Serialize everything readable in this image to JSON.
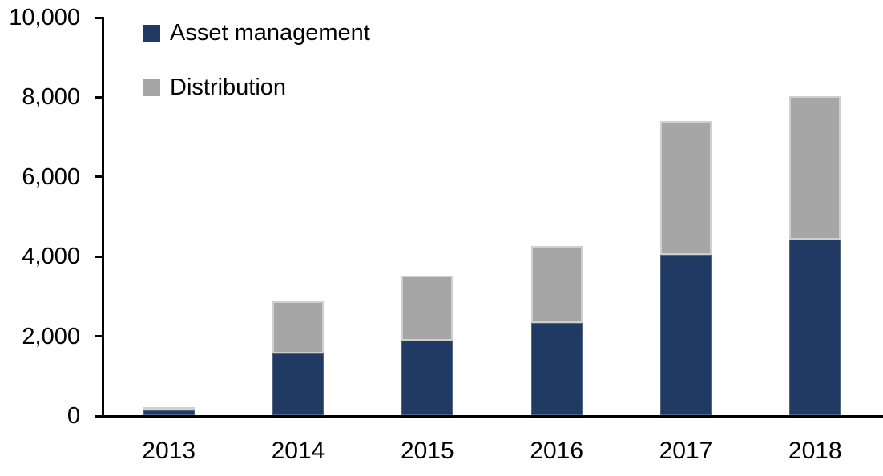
{
  "chart_data": {
    "type": "bar",
    "stacked": true,
    "title": "",
    "xlabel": "",
    "ylabel": "",
    "categories": [
      "2013",
      "2014",
      "2015",
      "2016",
      "2017",
      "2018"
    ],
    "series": [
      {
        "name": "Asset management",
        "color": "#213A63",
        "values": [
          115,
          1550,
          1880,
          2310,
          4030,
          4410
        ]
      },
      {
        "name": "Distribution",
        "color": "#A6A6A6",
        "values": [
          80,
          1310,
          1620,
          1930,
          3360,
          3600
        ]
      }
    ],
    "totals": [
      195,
      2860,
      3500,
      4240,
      7390,
      8010
    ],
    "ylim": [
      0,
      10000
    ],
    "yticks": [
      0,
      2000,
      4000,
      6000,
      8000,
      10000
    ],
    "ytick_labels": [
      "0",
      "2,000",
      "4,000",
      "6,000",
      "8,000",
      "10,000"
    ],
    "grid": false,
    "legend_position": "top-left",
    "axis_color": "#000000",
    "background_color": "#FFFFFF"
  },
  "legend": {
    "items": [
      {
        "label": "Asset management"
      },
      {
        "label": "Distribution"
      }
    ]
  }
}
